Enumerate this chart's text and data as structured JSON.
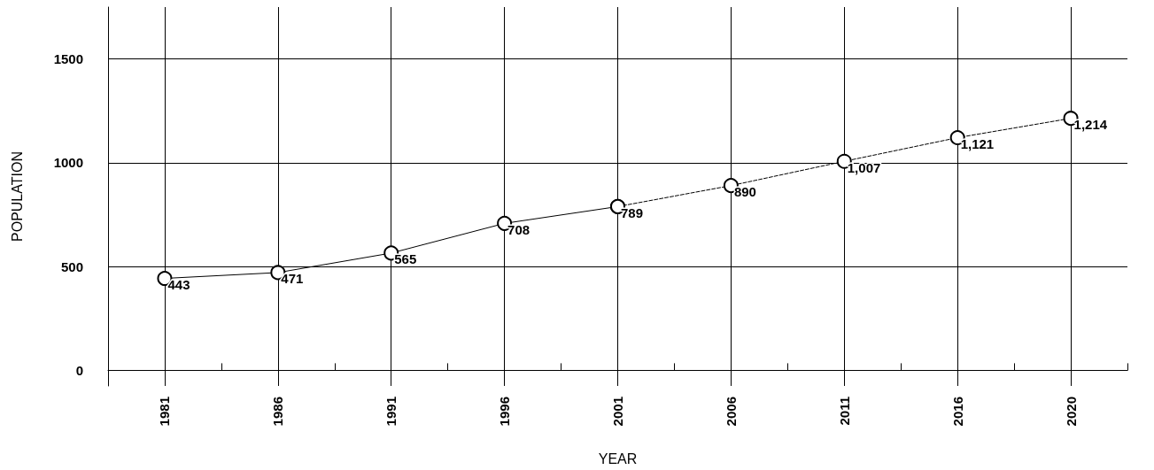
{
  "chart_data": {
    "type": "line",
    "xlabel": "YEAR",
    "ylabel": "POPULATION",
    "categories": [
      "1981",
      "1986",
      "1991",
      "1996",
      "2001",
      "2006",
      "2011",
      "2016",
      "2020"
    ],
    "series": [
      {
        "color": "#000000",
        "line_style": "solid",
        "values": [
          443,
          471,
          565,
          708,
          789,
          null,
          null,
          null,
          null
        ],
        "value_labels": [
          "443",
          "471",
          "565",
          "708",
          "789",
          null,
          null,
          null,
          null
        ]
      },
      {
        "color": "#000000",
        "line_style": "dashed",
        "values": [
          null,
          null,
          null,
          null,
          789,
          890,
          1007,
          1121,
          1214
        ],
        "value_labels": [
          null,
          null,
          null,
          null,
          null,
          "890",
          "1,007",
          "1,121",
          "1,214"
        ]
      }
    ],
    "ylim": [
      -75,
      1750
    ],
    "yticks": [
      0,
      500,
      1000,
      1500
    ],
    "grid": true,
    "marker": "circle"
  }
}
